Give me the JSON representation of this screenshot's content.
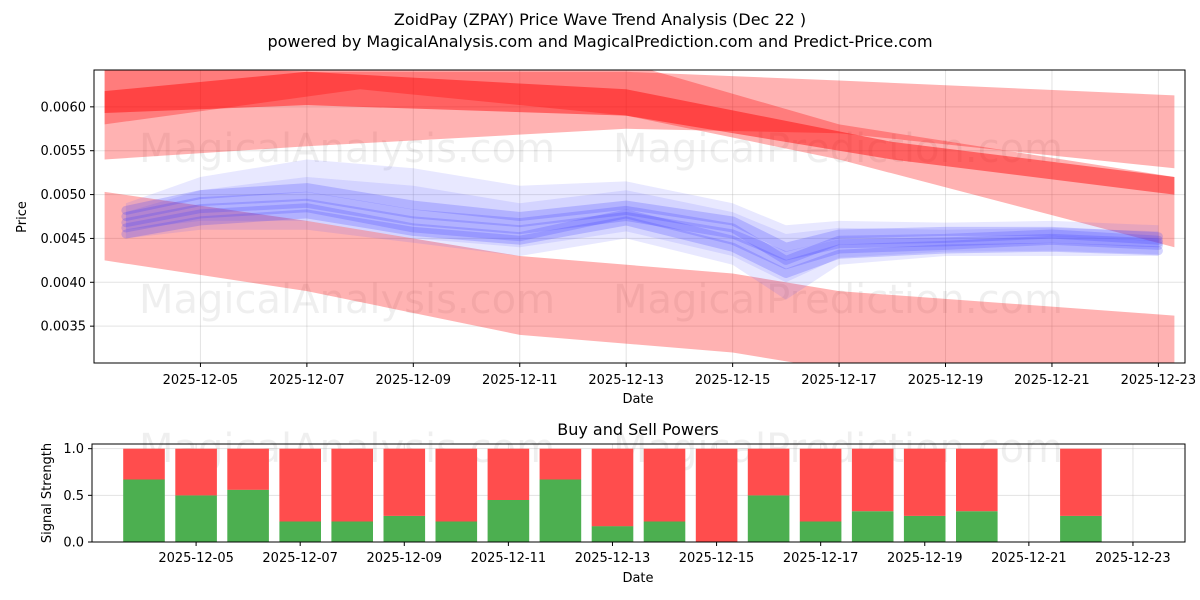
{
  "chart_data": [
    {
      "type": "area",
      "title": "ZoidPay (ZPAY) Price Wave Trend Analysis (Dec 22 )",
      "subtitle": "powered by MagicalAnalysis.com and MagicalPrediction.com and Predict-Price.com",
      "xlabel": "Date",
      "ylabel": "Price",
      "ylim": [
        0.00308,
        0.00642
      ],
      "xlim_days": [
        3.0,
        23.5
      ],
      "x_ticks": [
        {
          "day": 5,
          "label": "2025-12-05"
        },
        {
          "day": 7,
          "label": "2025-12-07"
        },
        {
          "day": 9,
          "label": "2025-12-09"
        },
        {
          "day": 11,
          "label": "2025-12-11"
        },
        {
          "day": 13,
          "label": "2025-12-13"
        },
        {
          "day": 15,
          "label": "2025-12-15"
        },
        {
          "day": 17,
          "label": "2025-12-17"
        },
        {
          "day": 19,
          "label": "2025-12-19"
        },
        {
          "day": 21,
          "label": "2025-12-21"
        },
        {
          "day": 23,
          "label": "2025-12-23"
        }
      ],
      "y_ticks": [
        {
          "value": 0.0035,
          "label": "0.0035"
        },
        {
          "value": 0.004,
          "label": "0.0040"
        },
        {
          "value": 0.0045,
          "label": "0.0045"
        },
        {
          "value": 0.005,
          "label": "0.0050"
        },
        {
          "value": 0.0055,
          "label": "0.0055"
        },
        {
          "value": 0.006,
          "label": "0.0060"
        }
      ],
      "red_bands": [
        {
          "name": "upper-band-1",
          "opacity": 0.3,
          "x": [
            3.2,
            7,
            13,
            17,
            23.3
          ],
          "upper": [
            0.0065,
            0.0064,
            0.0064,
            0.0063,
            0.00613
          ],
          "lower": [
            0.0054,
            0.00555,
            0.00575,
            0.0057,
            0.0053
          ]
        },
        {
          "name": "upper-band-2",
          "opacity": 0.3,
          "x": [
            3.2,
            8,
            13,
            17,
            23.3
          ],
          "upper": [
            0.0065,
            0.0066,
            0.0065,
            0.0058,
            0.0052
          ],
          "lower": [
            0.0058,
            0.0062,
            0.0059,
            0.0054,
            0.0044
          ]
        },
        {
          "name": "upper-band-3",
          "opacity": 0.45,
          "x": [
            3.2,
            7,
            13,
            18,
            23.3
          ],
          "upper": [
            0.00618,
            0.0064,
            0.0062,
            0.0056,
            0.0052
          ],
          "lower": [
            0.00593,
            0.00602,
            0.0059,
            0.0054,
            0.005
          ]
        },
        {
          "name": "lower-band",
          "opacity": 0.3,
          "x": [
            3.2,
            7,
            11,
            15,
            17,
            23.3
          ],
          "upper": [
            0.00503,
            0.0047,
            0.0043,
            0.0041,
            0.0039,
            0.00362
          ],
          "lower": [
            0.00425,
            0.0039,
            0.0034,
            0.0032,
            0.003,
            0.00275
          ]
        }
      ],
      "blue_series": [
        {
          "name": "wave-1",
          "x": [
            3.6,
            5,
            7,
            9,
            11,
            13,
            15,
            16,
            17,
            19,
            21,
            23
          ],
          "values": [
            0.00475,
            0.00492,
            0.00498,
            0.00478,
            0.00468,
            0.00482,
            0.00462,
            0.00425,
            0.00448,
            0.0045,
            0.00455,
            0.00448
          ]
        },
        {
          "name": "wave-2",
          "x": [
            3.6,
            5,
            7,
            9,
            11,
            13,
            15,
            16,
            17,
            19,
            21,
            23
          ],
          "values": [
            0.00462,
            0.00478,
            0.00485,
            0.00462,
            0.00452,
            0.00478,
            0.00448,
            0.0042,
            0.00438,
            0.00442,
            0.00448,
            0.00442
          ]
        },
        {
          "name": "wave-3",
          "x": [
            3.6,
            5,
            7,
            9,
            11,
            13,
            15,
            16,
            17,
            19,
            21,
            23
          ],
          "values": [
            0.00455,
            0.0047,
            0.00478,
            0.00458,
            0.00448,
            0.0047,
            0.0044,
            0.0041,
            0.00432,
            0.00438,
            0.0044,
            0.00436
          ]
        },
        {
          "name": "wave-4",
          "x": [
            3.6,
            5,
            7,
            9,
            11,
            13,
            15,
            16,
            17,
            19,
            21,
            23
          ],
          "values": [
            0.00482,
            0.005,
            0.00508,
            0.00488,
            0.00475,
            0.00488,
            0.0047,
            0.0044,
            0.00455,
            0.00458,
            0.00458,
            0.00452
          ]
        },
        {
          "name": "wave-5",
          "x": [
            3.6,
            5,
            7,
            9,
            11,
            13,
            15,
            16,
            17,
            19,
            21,
            23
          ],
          "values": [
            0.00468,
            0.00484,
            0.0049,
            0.0047,
            0.0046,
            0.00475,
            0.00455,
            0.0043,
            0.00444,
            0.00446,
            0.0045,
            0.00445
          ]
        }
      ],
      "blue_bands": [
        {
          "x": [
            3.6,
            5,
            7,
            9,
            11,
            13,
            15,
            16,
            17,
            19,
            21,
            23
          ],
          "upper": [
            0.0049,
            0.0052,
            0.0054,
            0.0053,
            0.0051,
            0.00515,
            0.0049,
            0.00465,
            0.0047,
            0.00468,
            0.0047,
            0.00465
          ],
          "lower": [
            0.0045,
            0.0046,
            0.0046,
            0.00445,
            0.0043,
            0.0045,
            0.0042,
            0.0038,
            0.0042,
            0.0043,
            0.0043,
            0.0043
          ]
        },
        {
          "x": [
            3.6,
            5,
            7,
            9,
            11,
            13,
            15,
            16,
            17,
            19,
            21,
            23
          ],
          "upper": [
            0.0048,
            0.00505,
            0.0052,
            0.0051,
            0.0049,
            0.00505,
            0.0048,
            0.00455,
            0.00462,
            0.0046,
            0.00462,
            0.00458
          ],
          "lower": [
            0.0046,
            0.0047,
            0.0047,
            0.0045,
            0.0044,
            0.00458,
            0.0043,
            0.004,
            0.00428,
            0.00435,
            0.00436,
            0.00432
          ]
        }
      ]
    },
    {
      "type": "bar",
      "title": "Buy and Sell Powers",
      "xlabel": "Date",
      "ylabel": "Signal Strength",
      "ylim": [
        0,
        1.05
      ],
      "y_ticks": [
        {
          "value": 0.0,
          "label": "0.0"
        },
        {
          "value": 0.5,
          "label": "0.5"
        },
        {
          "value": 1.0,
          "label": "1.0"
        }
      ],
      "x_ticks": [
        {
          "day": 5,
          "label": "2025-12-05"
        },
        {
          "day": 7,
          "label": "2025-12-07"
        },
        {
          "day": 9,
          "label": "2025-12-09"
        },
        {
          "day": 11,
          "label": "2025-12-11"
        },
        {
          "day": 13,
          "label": "2025-12-13"
        },
        {
          "day": 15,
          "label": "2025-12-15"
        },
        {
          "day": 17,
          "label": "2025-12-17"
        },
        {
          "day": 19,
          "label": "2025-12-19"
        },
        {
          "day": 21,
          "label": "2025-12-21"
        },
        {
          "day": 23,
          "label": "2025-12-23"
        }
      ],
      "xlim_days": [
        3.0,
        24.0
      ],
      "buy_color": "#4caf50",
      "sell_color": "#ff4d4d",
      "days": [
        4,
        5,
        6,
        7,
        8,
        9,
        10,
        11,
        12,
        13,
        14,
        15,
        16,
        17,
        18,
        19,
        20,
        22
      ],
      "buy": [
        0.67,
        0.5,
        0.56,
        0.22,
        0.22,
        0.28,
        0.22,
        0.45,
        0.67,
        0.17,
        0.22,
        0.0,
        0.5,
        0.22,
        0.33,
        0.28,
        0.33,
        0.28
      ],
      "sell": [
        0.33,
        0.5,
        0.44,
        0.78,
        0.78,
        0.72,
        0.78,
        0.55,
        0.33,
        0.83,
        0.78,
        1.0,
        0.5,
        0.78,
        0.67,
        0.72,
        0.67,
        0.72
      ]
    }
  ],
  "watermarks": [
    "MagicalAnalysis.com",
    "MagicalPrediction.com"
  ]
}
